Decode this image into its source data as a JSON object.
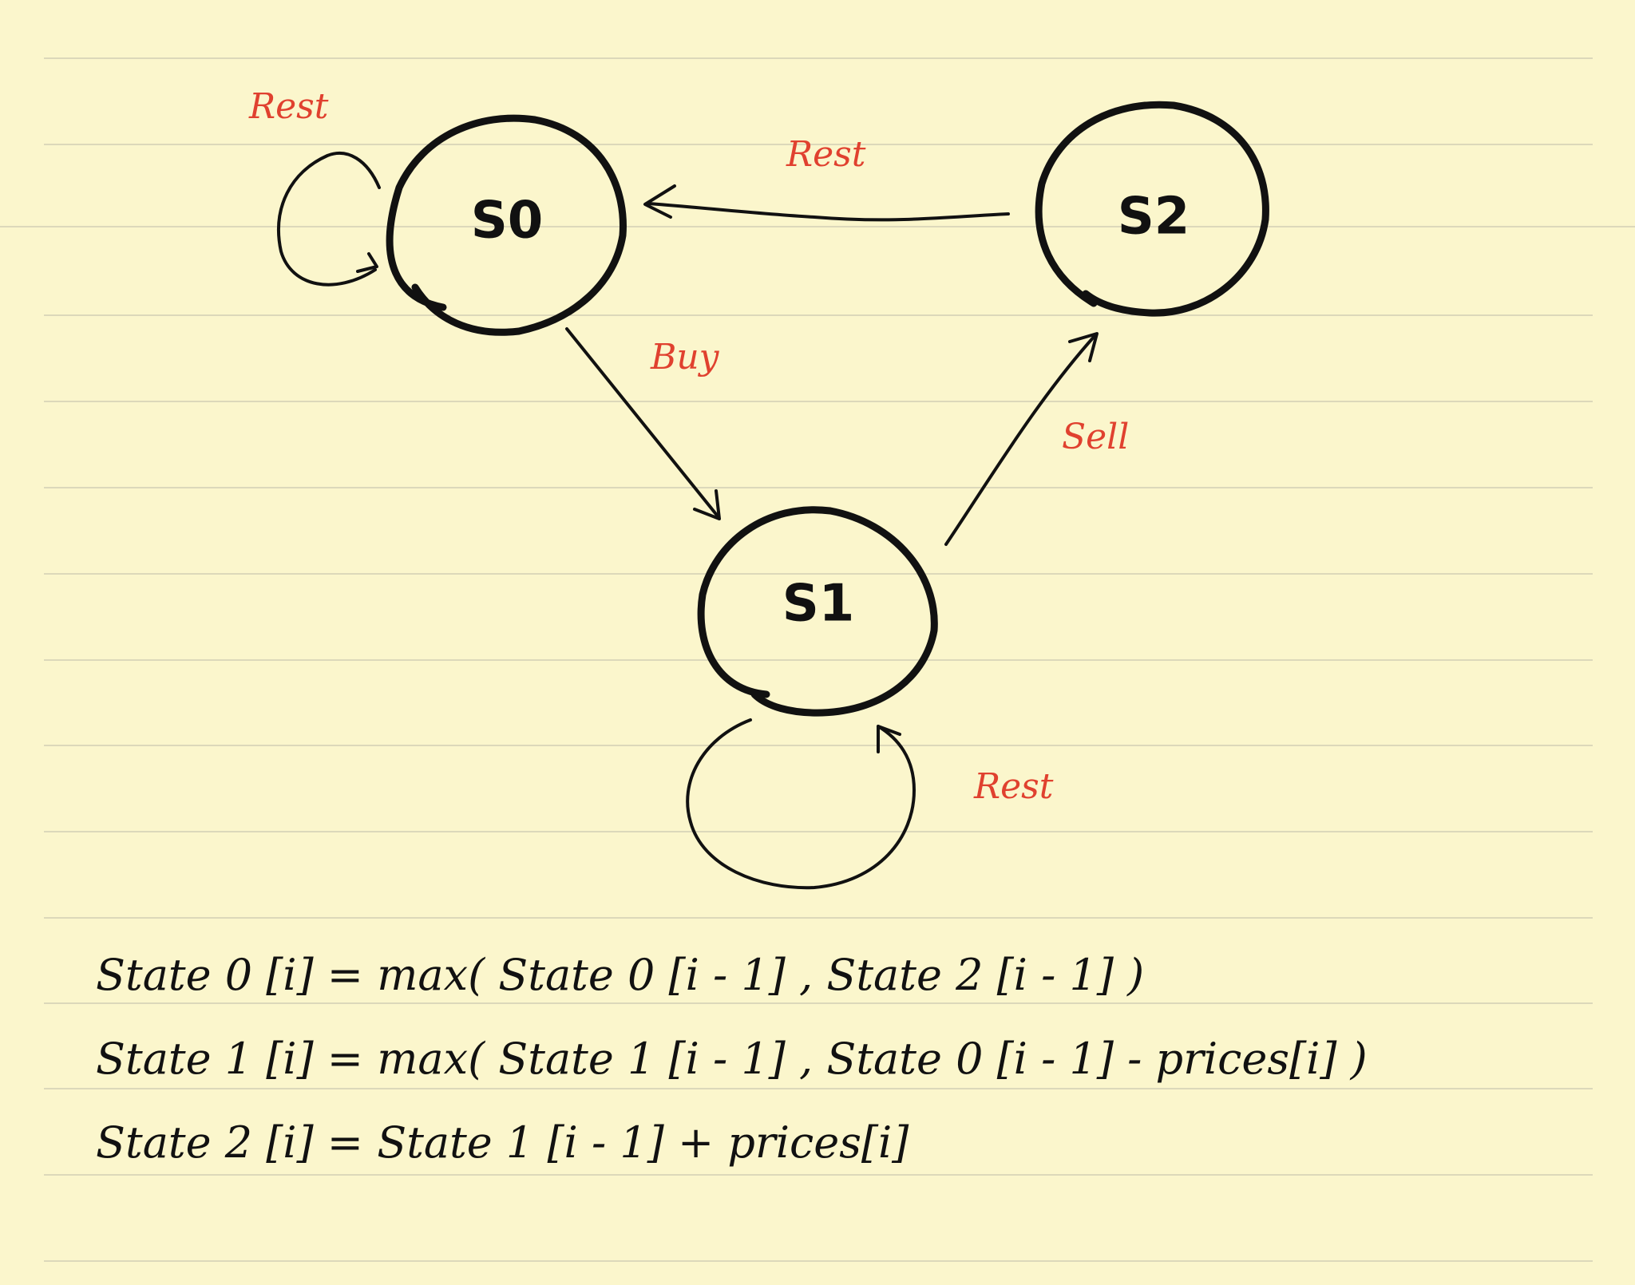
{
  "diagram": {
    "states": [
      {
        "id": "s0",
        "label": "S0"
      },
      {
        "id": "s1",
        "label": "S1"
      },
      {
        "id": "s2",
        "label": "S2"
      }
    ],
    "transitions": [
      {
        "from": "s0",
        "to": "s0",
        "label": "Rest"
      },
      {
        "from": "s2",
        "to": "s0",
        "label": "Rest"
      },
      {
        "from": "s0",
        "to": "s1",
        "label": "Buy"
      },
      {
        "from": "s1",
        "to": "s2",
        "label": "Sell"
      },
      {
        "from": "s1",
        "to": "s1",
        "label": "Rest"
      }
    ]
  },
  "equations": [
    "State 0 [i] =  max( State 0 [i - 1] ,   State 2 [i - 1] )",
    "State 1 [i] = max( State 1 [i - 1] , State 0 [i - 1] - prices[i] )",
    "State 2 [i] = State 1 [i - 1] + prices[i]"
  ],
  "colors": {
    "paper": "#fbf6cc",
    "ink": "#111111",
    "annotation": "#e0412f",
    "rule": "#c9c6b0"
  }
}
